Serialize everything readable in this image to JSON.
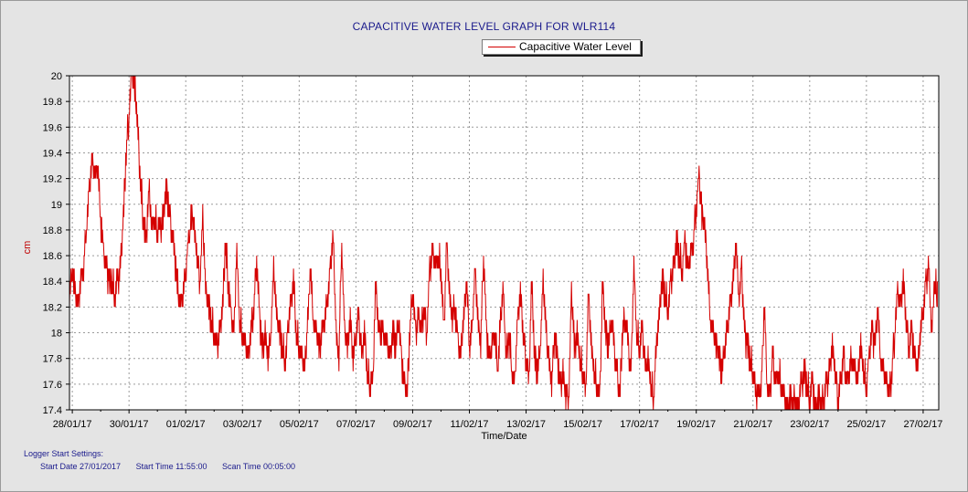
{
  "chart_data": {
    "type": "line",
    "title": "CAPACITIVE WATER LEVEL GRAPH FOR WLR114",
    "xlabel": "Time/Date",
    "ylabel": "cm",
    "ylim": [
      17.4,
      20.0
    ],
    "yticks": [
      "17.4",
      "17.6",
      "17.8",
      "18",
      "18.2",
      "18.4",
      "18.6",
      "18.8",
      "19",
      "19.2",
      "19.4",
      "19.6",
      "19.8",
      "20"
    ],
    "xticks": [
      "28/01/17",
      "30/01/17",
      "01/02/17",
      "03/02/17",
      "05/02/17",
      "07/02/17",
      "09/02/17",
      "11/02/17",
      "13/02/17",
      "15/02/17",
      "17/02/17",
      "19/02/17",
      "21/02/17",
      "23/02/17",
      "25/02/17",
      "27/02/17"
    ],
    "xlim_days": [
      -0.1,
      30.55
    ],
    "grid": true,
    "legend": "top",
    "series": [
      {
        "name": "Capacitive Water Level",
        "color": "#d40000",
        "points": [
          [
            -0.1,
            18.3
          ],
          [
            0.0,
            18.5
          ],
          [
            0.1,
            18.3
          ],
          [
            0.2,
            18.2
          ],
          [
            0.3,
            18.4
          ],
          [
            0.4,
            18.5
          ],
          [
            0.5,
            18.8
          ],
          [
            0.6,
            19.1
          ],
          [
            0.7,
            19.3
          ],
          [
            0.8,
            19.2
          ],
          [
            0.9,
            19.3
          ],
          [
            1.0,
            18.9
          ],
          [
            1.1,
            18.6
          ],
          [
            1.2,
            18.5
          ],
          [
            1.3,
            18.4
          ],
          [
            1.4,
            18.4
          ],
          [
            1.5,
            18.3
          ],
          [
            1.6,
            18.4
          ],
          [
            1.7,
            18.5
          ],
          [
            1.8,
            18.9
          ],
          [
            1.9,
            19.4
          ],
          [
            2.0,
            19.7
          ],
          [
            2.1,
            20.0
          ],
          [
            2.2,
            19.9
          ],
          [
            2.3,
            19.6
          ],
          [
            2.4,
            19.2
          ],
          [
            2.5,
            18.9
          ],
          [
            2.6,
            18.7
          ],
          [
            2.7,
            19.1
          ],
          [
            2.8,
            18.8
          ],
          [
            2.9,
            18.9
          ],
          [
            3.0,
            18.8
          ],
          [
            3.1,
            18.8
          ],
          [
            3.2,
            18.9
          ],
          [
            3.3,
            19.1
          ],
          [
            3.4,
            19.0
          ],
          [
            3.5,
            18.8
          ],
          [
            3.6,
            18.6
          ],
          [
            3.7,
            18.4
          ],
          [
            3.8,
            18.2
          ],
          [
            3.9,
            18.3
          ],
          [
            4.0,
            18.5
          ],
          [
            4.1,
            18.7
          ],
          [
            4.2,
            18.9
          ],
          [
            4.3,
            18.8
          ],
          [
            4.4,
            18.6
          ],
          [
            4.5,
            18.4
          ],
          [
            4.6,
            18.9
          ],
          [
            4.7,
            18.3
          ],
          [
            4.8,
            18.2
          ],
          [
            4.9,
            18.1
          ],
          [
            5.0,
            18.0
          ],
          [
            5.1,
            17.9
          ],
          [
            5.2,
            18.0
          ],
          [
            5.3,
            18.2
          ],
          [
            5.4,
            18.7
          ],
          [
            5.5,
            18.4
          ],
          [
            5.6,
            18.1
          ],
          [
            5.7,
            18.0
          ],
          [
            5.8,
            18.6
          ],
          [
            5.9,
            18.1
          ],
          [
            6.0,
            18.0
          ],
          [
            6.1,
            17.9
          ],
          [
            6.2,
            17.8
          ],
          [
            6.3,
            18.0
          ],
          [
            6.4,
            18.2
          ],
          [
            6.5,
            18.6
          ],
          [
            6.6,
            18.1
          ],
          [
            6.7,
            17.9
          ],
          [
            6.8,
            18.0
          ],
          [
            6.9,
            17.8
          ],
          [
            7.0,
            18.0
          ],
          [
            7.1,
            18.5
          ],
          [
            7.2,
            18.1
          ],
          [
            7.3,
            18.0
          ],
          [
            7.4,
            17.9
          ],
          [
            7.5,
            17.8
          ],
          [
            7.6,
            18.0
          ],
          [
            7.7,
            18.2
          ],
          [
            7.8,
            18.4
          ],
          [
            7.9,
            18.0
          ],
          [
            8.0,
            17.9
          ],
          [
            8.1,
            17.8
          ],
          [
            8.2,
            17.7
          ],
          [
            8.3,
            18.1
          ],
          [
            8.4,
            18.5
          ],
          [
            8.5,
            18.1
          ],
          [
            8.6,
            18.0
          ],
          [
            8.7,
            17.9
          ],
          [
            8.8,
            18.0
          ],
          [
            8.9,
            18.1
          ],
          [
            9.0,
            18.3
          ],
          [
            9.1,
            18.5
          ],
          [
            9.2,
            18.7
          ],
          [
            9.3,
            18.0
          ],
          [
            9.4,
            17.8
          ],
          [
            9.5,
            18.7
          ],
          [
            9.6,
            18.0
          ],
          [
            9.7,
            17.9
          ],
          [
            9.8,
            18.1
          ],
          [
            9.9,
            17.8
          ],
          [
            10.0,
            18.0
          ],
          [
            10.1,
            18.1
          ],
          [
            10.2,
            17.8
          ],
          [
            10.3,
            18.0
          ],
          [
            10.4,
            17.7
          ],
          [
            10.5,
            17.6
          ],
          [
            10.6,
            17.6
          ],
          [
            10.7,
            18.4
          ],
          [
            10.8,
            18.0
          ],
          [
            10.9,
            18.0
          ],
          [
            11.0,
            18.0
          ],
          [
            11.1,
            17.9
          ],
          [
            11.2,
            17.8
          ],
          [
            11.3,
            18.0
          ],
          [
            11.4,
            17.9
          ],
          [
            11.5,
            18.1
          ],
          [
            11.6,
            17.8
          ],
          [
            11.7,
            17.6
          ],
          [
            11.8,
            17.5
          ],
          [
            11.9,
            18.0
          ],
          [
            12.0,
            18.3
          ],
          [
            12.1,
            18.0
          ],
          [
            12.2,
            18.1
          ],
          [
            12.3,
            18.0
          ],
          [
            12.4,
            18.2
          ],
          [
            12.5,
            18.0
          ],
          [
            12.6,
            18.5
          ],
          [
            12.7,
            18.6
          ],
          [
            12.8,
            18.5
          ],
          [
            12.9,
            18.6
          ],
          [
            13.0,
            18.5
          ],
          [
            13.1,
            18.0
          ],
          [
            13.2,
            18.7
          ],
          [
            13.3,
            18.3
          ],
          [
            13.4,
            18.1
          ],
          [
            13.5,
            18.2
          ],
          [
            13.6,
            17.9
          ],
          [
            13.7,
            17.8
          ],
          [
            13.8,
            18.1
          ],
          [
            13.9,
            18.4
          ],
          [
            14.0,
            17.9
          ],
          [
            14.1,
            18.0
          ],
          [
            14.2,
            18.5
          ],
          [
            14.3,
            18.1
          ],
          [
            14.4,
            17.9
          ],
          [
            14.5,
            18.6
          ],
          [
            14.6,
            18.0
          ],
          [
            14.7,
            17.8
          ],
          [
            14.8,
            17.9
          ],
          [
            14.9,
            18.0
          ],
          [
            15.0,
            17.7
          ],
          [
            15.1,
            18.1
          ],
          [
            15.2,
            18.3
          ],
          [
            15.3,
            17.8
          ],
          [
            15.4,
            18.0
          ],
          [
            15.5,
            17.7
          ],
          [
            15.6,
            17.6
          ],
          [
            15.7,
            18.1
          ],
          [
            15.8,
            18.3
          ],
          [
            15.9,
            18.0
          ],
          [
            16.0,
            17.8
          ],
          [
            16.1,
            17.6
          ],
          [
            16.2,
            18.4
          ],
          [
            16.3,
            17.8
          ],
          [
            16.4,
            17.7
          ],
          [
            16.5,
            17.9
          ],
          [
            16.6,
            18.4
          ],
          [
            16.7,
            18.0
          ],
          [
            16.8,
            17.8
          ],
          [
            16.9,
            17.6
          ],
          [
            17.0,
            18.0
          ],
          [
            17.1,
            17.8
          ],
          [
            17.2,
            17.6
          ],
          [
            17.3,
            17.7
          ],
          [
            17.4,
            17.5
          ],
          [
            17.5,
            17.5
          ],
          [
            17.6,
            18.3
          ],
          [
            17.7,
            17.9
          ],
          [
            17.8,
            18.0
          ],
          [
            17.9,
            17.8
          ],
          [
            18.0,
            17.7
          ],
          [
            18.1,
            17.5
          ],
          [
            18.2,
            18.3
          ],
          [
            18.3,
            17.9
          ],
          [
            18.4,
            17.7
          ],
          [
            18.5,
            17.6
          ],
          [
            18.6,
            17.5
          ],
          [
            18.7,
            18.4
          ],
          [
            18.8,
            18.0
          ],
          [
            18.9,
            17.9
          ],
          [
            19.0,
            18.1
          ],
          [
            19.1,
            17.9
          ],
          [
            19.2,
            17.7
          ],
          [
            19.3,
            17.5
          ],
          [
            19.4,
            18.0
          ],
          [
            19.5,
            18.1
          ],
          [
            19.6,
            17.9
          ],
          [
            19.7,
            17.7
          ],
          [
            19.8,
            18.5
          ],
          [
            19.9,
            18.0
          ],
          [
            20.0,
            17.9
          ],
          [
            20.1,
            18.0
          ],
          [
            20.2,
            17.7
          ],
          [
            20.3,
            17.8
          ],
          [
            20.4,
            17.6
          ],
          [
            20.5,
            17.5
          ],
          [
            20.6,
            17.9
          ],
          [
            20.7,
            18.1
          ],
          [
            20.8,
            18.4
          ],
          [
            20.9,
            18.3
          ],
          [
            21.0,
            18.2
          ],
          [
            21.1,
            18.4
          ],
          [
            21.2,
            18.5
          ],
          [
            21.3,
            18.7
          ],
          [
            21.4,
            18.6
          ],
          [
            21.5,
            18.5
          ],
          [
            21.6,
            18.7
          ],
          [
            21.7,
            18.5
          ],
          [
            21.8,
            18.6
          ],
          [
            21.9,
            18.7
          ],
          [
            22.0,
            19.0
          ],
          [
            22.1,
            19.2
          ],
          [
            22.2,
            18.9
          ],
          [
            22.3,
            18.8
          ],
          [
            22.4,
            18.5
          ],
          [
            22.5,
            18.1
          ],
          [
            22.6,
            18.0
          ],
          [
            22.7,
            17.9
          ],
          [
            22.8,
            17.8
          ],
          [
            22.9,
            17.7
          ],
          [
            23.0,
            17.9
          ],
          [
            23.1,
            18.0
          ],
          [
            23.2,
            18.2
          ],
          [
            23.3,
            18.4
          ],
          [
            23.4,
            18.7
          ],
          [
            23.5,
            18.3
          ],
          [
            23.6,
            18.5
          ],
          [
            23.7,
            18.0
          ],
          [
            23.8,
            17.9
          ],
          [
            23.9,
            17.8
          ],
          [
            24.0,
            17.7
          ],
          [
            24.1,
            17.5
          ],
          [
            24.2,
            17.5
          ],
          [
            24.3,
            17.6
          ],
          [
            24.4,
            18.2
          ],
          [
            24.5,
            17.6
          ],
          [
            24.6,
            17.5
          ],
          [
            24.7,
            17.8
          ],
          [
            24.8,
            17.6
          ],
          [
            24.9,
            17.7
          ],
          [
            25.0,
            17.6
          ],
          [
            25.1,
            17.5
          ],
          [
            25.2,
            17.4
          ],
          [
            25.3,
            17.5
          ],
          [
            25.4,
            17.4
          ],
          [
            25.5,
            17.5
          ],
          [
            25.6,
            17.4
          ],
          [
            25.7,
            17.6
          ],
          [
            25.8,
            17.7
          ],
          [
            25.9,
            17.6
          ],
          [
            26.0,
            17.5
          ],
          [
            26.1,
            17.6
          ],
          [
            26.2,
            17.4
          ],
          [
            26.3,
            17.5
          ],
          [
            26.4,
            17.4
          ],
          [
            26.5,
            17.5
          ],
          [
            26.6,
            17.6
          ],
          [
            26.7,
            17.7
          ],
          [
            26.8,
            17.9
          ],
          [
            26.9,
            17.7
          ],
          [
            27.0,
            17.5
          ],
          [
            27.1,
            17.6
          ],
          [
            27.2,
            17.8
          ],
          [
            27.3,
            17.6
          ],
          [
            27.4,
            17.7
          ],
          [
            27.5,
            17.8
          ],
          [
            27.6,
            17.7
          ],
          [
            27.7,
            17.6
          ],
          [
            27.8,
            17.9
          ],
          [
            27.9,
            17.7
          ],
          [
            28.0,
            17.6
          ],
          [
            28.1,
            17.8
          ],
          [
            28.2,
            18.0
          ],
          [
            28.3,
            17.9
          ],
          [
            28.4,
            18.2
          ],
          [
            28.5,
            17.8
          ],
          [
            28.6,
            17.7
          ],
          [
            28.7,
            17.6
          ],
          [
            28.8,
            17.5
          ],
          [
            28.9,
            17.7
          ],
          [
            29.0,
            18.0
          ],
          [
            29.1,
            18.3
          ],
          [
            29.2,
            18.2
          ],
          [
            29.3,
            18.4
          ],
          [
            29.4,
            18.1
          ],
          [
            29.5,
            17.9
          ],
          [
            29.6,
            18.0
          ],
          [
            29.7,
            17.8
          ],
          [
            29.8,
            17.7
          ],
          [
            29.9,
            18.0
          ],
          [
            30.0,
            18.2
          ],
          [
            30.1,
            18.4
          ],
          [
            30.2,
            18.5
          ],
          [
            30.3,
            18.0
          ],
          [
            30.4,
            18.4
          ],
          [
            30.5,
            18.3
          ]
        ]
      }
    ],
    "x_day_labels_offset": 0
  },
  "legend": {
    "label": "Capacitive Water Level"
  },
  "logger": {
    "heading": "Logger Start Settings:",
    "start_date": "Start Date 27/01/2017",
    "start_time": "Start Time 11:55:00",
    "scan_time": "Scan Time 00:05:00"
  }
}
